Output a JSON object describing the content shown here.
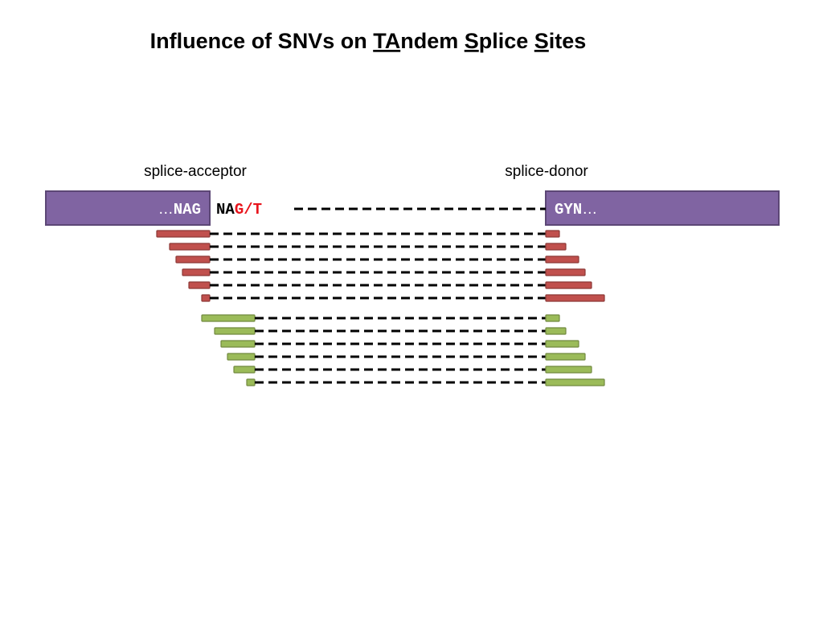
{
  "title_parts": [
    "Influence of SNVs on ",
    "TA",
    "ndem ",
    "S",
    "plice ",
    "S",
    "ites"
  ],
  "labels": {
    "acceptor": "splice-acceptor",
    "donor": "splice-donor"
  },
  "exon_left": [
    "…",
    "NAG"
  ],
  "intron_start": [
    "NA",
    "G/T"
  ],
  "exon_right": [
    "GYN",
    "…"
  ]
}
